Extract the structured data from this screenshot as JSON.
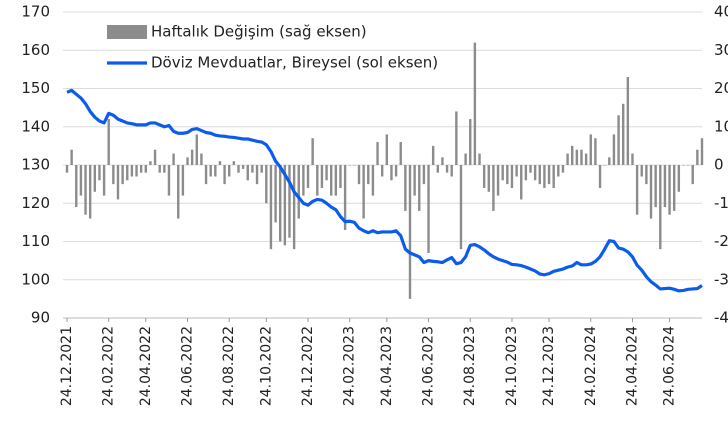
{
  "chart_data": {
    "type": "bar-line",
    "categories": [
      "24.12.2021",
      null,
      null,
      null,
      null,
      null,
      null,
      null,
      null,
      "24.02.2022",
      null,
      null,
      null,
      null,
      null,
      null,
      null,
      "24.04.2022",
      null,
      null,
      null,
      null,
      null,
      null,
      null,
      null,
      "24.06.2022",
      null,
      null,
      null,
      null,
      null,
      null,
      null,
      null,
      "24.08.2022",
      null,
      null,
      null,
      null,
      null,
      null,
      null,
      "24.10.2022",
      null,
      null,
      null,
      null,
      null,
      null,
      null,
      null,
      "24.12.2022",
      null,
      null,
      null,
      null,
      null,
      null,
      null,
      null,
      "24.02.2023",
      null,
      null,
      null,
      null,
      null,
      null,
      null,
      "24.04.2023",
      null,
      null,
      null,
      null,
      null,
      null,
      null,
      null,
      "24.06.2023",
      null,
      null,
      null,
      null,
      null,
      null,
      null,
      null,
      "24.08.2023",
      null,
      null,
      null,
      null,
      null,
      null,
      null,
      null,
      "24.10.2023",
      null,
      null,
      null,
      null,
      null,
      null,
      null,
      "24.12.2023",
      null,
      null,
      null,
      null,
      null,
      null,
      null,
      null,
      "24.02.2024",
      null,
      null,
      null,
      null,
      null,
      null,
      null,
      null,
      "24.04.2024",
      null,
      null,
      null,
      null,
      null,
      null,
      null,
      "24.06.2024",
      null,
      null,
      null,
      null,
      null,
      null,
      null
    ],
    "series": [
      {
        "name": "Haftalık Değişim (sağ eksen)",
        "color": "#8c8c8c",
        "axis": "y2",
        "kind": "bar",
        "values": [
          -2,
          4,
          -11,
          -8,
          -13,
          -14,
          -7,
          -4,
          -8,
          12,
          -5,
          -9,
          -5,
          -4,
          -3,
          -3,
          -2,
          -2,
          1,
          4,
          -2,
          -2,
          -8,
          3,
          -14,
          -8,
          2,
          4,
          8,
          3,
          -5,
          -3,
          -3,
          1,
          -5,
          -3,
          1,
          -2,
          -1,
          -4,
          -2,
          -5,
          -2,
          -10,
          -22,
          -15,
          -20,
          -21,
          -19,
          -22,
          -14,
          -8,
          -6,
          7,
          -8,
          -6,
          -4,
          -8,
          -8,
          -6,
          -17,
          0,
          0,
          -5,
          -14,
          -5,
          -8,
          6,
          -3,
          8,
          -4,
          -3,
          6,
          -12,
          -35,
          -8,
          -12,
          -5,
          -23,
          5,
          -2,
          2,
          -2,
          -3,
          14,
          -22,
          3,
          12,
          32,
          3,
          -6,
          -7,
          -12,
          -8,
          -4,
          -5,
          -6,
          -3,
          -9,
          -4,
          -2,
          -4,
          -5,
          -6,
          -5,
          -6,
          -3,
          -2,
          3,
          5,
          4,
          4,
          3,
          8,
          7,
          -6,
          0,
          2,
          8,
          13,
          16,
          23,
          3,
          -13,
          -3,
          -5,
          -14,
          -11,
          -22,
          -11,
          -13,
          -12,
          -7,
          0,
          0,
          -5,
          4,
          7
        ]
      },
      {
        "name": "Döviz Mevduatlar, Bireysel (sol eksen)",
        "color": "#0b5ced",
        "axis": "y",
        "kind": "line",
        "values": [
          149,
          149.5,
          148.5,
          147.5,
          146,
          144,
          142.5,
          141.5,
          141,
          143.5,
          143,
          142,
          141.5,
          141,
          140.8,
          140.5,
          140.5,
          140.5,
          141,
          141,
          140.5,
          140,
          140.3,
          138.8,
          138.3,
          138.3,
          138.5,
          139.3,
          139.5,
          139,
          138.5,
          138.3,
          137.8,
          137.6,
          137.5,
          137.3,
          137.2,
          137,
          136.8,
          136.8,
          136.5,
          136.2,
          136,
          135.3,
          133.5,
          131,
          129.5,
          127.5,
          125.5,
          123,
          121.5,
          120,
          119.5,
          120.5,
          121,
          120.8,
          120,
          119,
          118.3,
          116.5,
          115.2,
          115.3,
          115,
          113.5,
          112.8,
          112.3,
          112.8,
          112.3,
          112.5,
          112.5,
          112.5,
          112.8,
          111.5,
          108,
          107,
          106.5,
          106,
          104.5,
          105,
          104.8,
          104.7,
          104.5,
          105.2,
          105.8,
          104.2,
          104.5,
          106,
          109,
          109.2,
          108.6,
          107.8,
          106.8,
          106,
          105.4,
          105,
          104.6,
          104,
          103.9,
          103.7,
          103.3,
          102.8,
          102.3,
          101.5,
          101.3,
          101.6,
          102.2,
          102.5,
          102.8,
          103.3,
          103.6,
          104.5,
          103.9,
          103.9,
          104.1,
          104.8,
          106,
          108,
          110.2,
          110,
          108.3,
          108,
          107.3,
          106,
          103.8,
          102.5,
          100.8,
          99.5,
          98.6,
          97.6,
          97.7,
          97.8,
          97.5,
          97.1,
          97.2,
          97.5,
          97.6,
          97.7,
          98.5
        ]
      }
    ],
    "ylim": [
      90,
      170
    ],
    "yticks": [
      90,
      100,
      110,
      120,
      130,
      140,
      150,
      160,
      170
    ],
    "y2lim": [
      -40,
      40
    ],
    "y2ticks": [
      -40,
      -30,
      -20,
      -10,
      0,
      10,
      20,
      30,
      40
    ],
    "grid": true,
    "legend": "upper left"
  }
}
